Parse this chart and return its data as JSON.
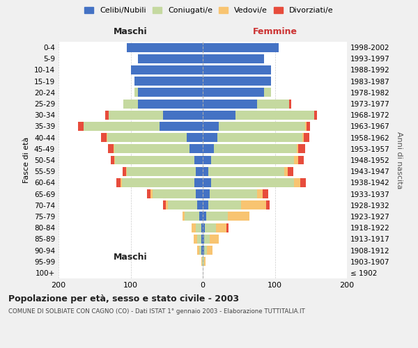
{
  "age_groups": [
    "100+",
    "95-99",
    "90-94",
    "85-89",
    "80-84",
    "75-79",
    "70-74",
    "65-69",
    "60-64",
    "55-59",
    "50-54",
    "45-49",
    "40-44",
    "35-39",
    "30-34",
    "25-29",
    "20-24",
    "15-19",
    "10-14",
    "5-9",
    "0-4"
  ],
  "birth_years": [
    "≤ 1902",
    "1903-1907",
    "1908-1912",
    "1913-1917",
    "1918-1922",
    "1923-1927",
    "1928-1932",
    "1933-1937",
    "1938-1942",
    "1943-1947",
    "1948-1952",
    "1953-1957",
    "1958-1962",
    "1963-1967",
    "1968-1972",
    "1973-1977",
    "1978-1982",
    "1983-1987",
    "1988-1992",
    "1993-1997",
    "1998-2002"
  ],
  "males": {
    "celibi": [
      0,
      0,
      2,
      2,
      2,
      5,
      8,
      10,
      12,
      10,
      12,
      18,
      22,
      60,
      55,
      90,
      90,
      95,
      100,
      90,
      105
    ],
    "coniugati": [
      0,
      1,
      3,
      6,
      8,
      20,
      40,
      60,
      100,
      95,
      110,
      105,
      110,
      105,
      75,
      20,
      5,
      0,
      0,
      0,
      0
    ],
    "vedovi": [
      0,
      1,
      3,
      5,
      5,
      3,
      3,
      2,
      2,
      1,
      1,
      1,
      1,
      0,
      0,
      0,
      0,
      0,
      0,
      0,
      0
    ],
    "divorziati": [
      0,
      0,
      0,
      0,
      0,
      0,
      4,
      5,
      6,
      5,
      5,
      7,
      8,
      8,
      5,
      0,
      0,
      0,
      0,
      0,
      0
    ]
  },
  "females": {
    "nubili": [
      0,
      0,
      2,
      2,
      3,
      5,
      8,
      10,
      12,
      8,
      12,
      15,
      20,
      22,
      45,
      75,
      85,
      95,
      95,
      85,
      105
    ],
    "coniugate": [
      0,
      2,
      4,
      8,
      15,
      30,
      45,
      65,
      115,
      105,
      115,
      115,
      118,
      120,
      110,
      45,
      10,
      0,
      0,
      0,
      0
    ],
    "vedove": [
      0,
      2,
      8,
      12,
      15,
      30,
      35,
      8,
      8,
      5,
      5,
      2,
      2,
      2,
      0,
      0,
      0,
      0,
      0,
      0,
      0
    ],
    "divorziate": [
      0,
      0,
      0,
      0,
      3,
      0,
      5,
      8,
      8,
      8,
      8,
      10,
      8,
      5,
      3,
      3,
      0,
      0,
      0,
      0,
      0
    ]
  },
  "color_celibi": "#4472c4",
  "color_coniugati": "#c5d9a0",
  "color_vedovi": "#f8c471",
  "color_divorziati": "#e74c3c",
  "title": "Popolazione per età, sesso e stato civile - 2003",
  "subtitle": "COMUNE DI SOLBIATE CON CAGNO (CO) - Dati ISTAT 1° gennaio 2003 - Elaborazione TUTTITALIA.IT",
  "xlabel_left": "Maschi",
  "xlabel_right": "Femmine",
  "ylabel_left": "Fasce di età",
  "ylabel_right": "Anni di nascita",
  "xlim": 200,
  "legend_labels": [
    "Celibi/Nubili",
    "Coniugati/e",
    "Vedovi/e",
    "Divorziati/e"
  ],
  "bg_color": "#f0f0f0",
  "plot_bg": "#ffffff"
}
